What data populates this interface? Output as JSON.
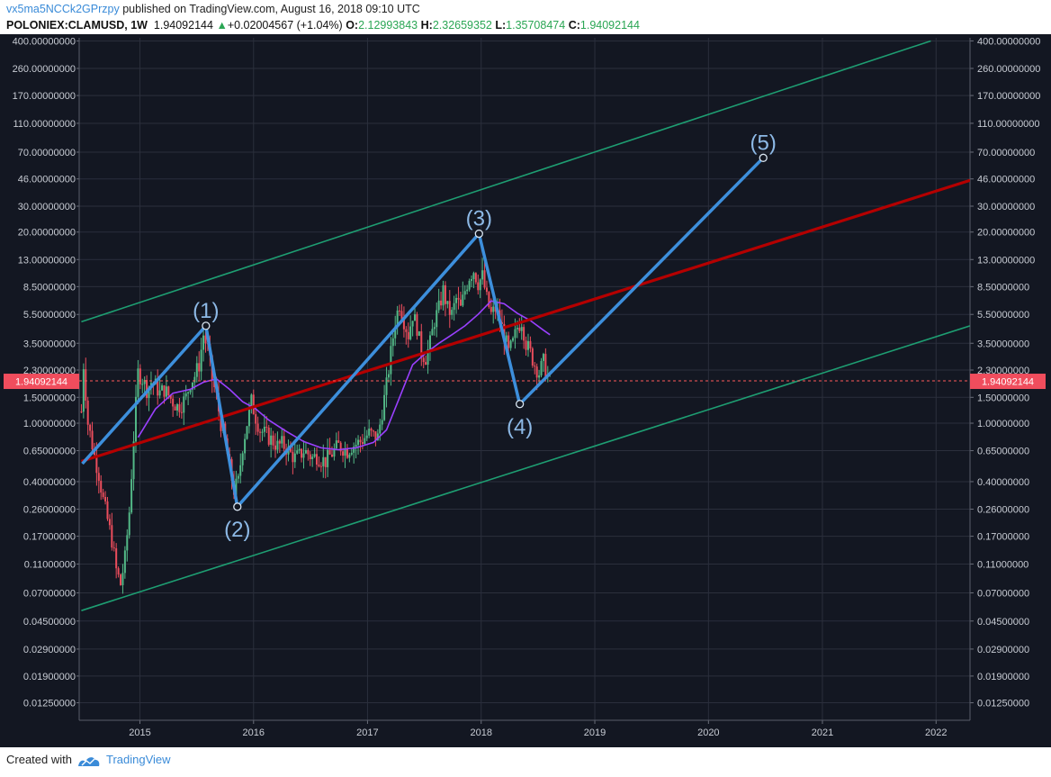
{
  "header": {
    "user": "vx5ma5NCCk2GPrzpy",
    "published_text": "published on TradingView.com, August 16, 2018 09:10 UTC",
    "symbol": "POLONIEX:CLAMUSD, 1W",
    "last": "1.94092144",
    "change": "+0.02004567 (+1.04%)",
    "o_label": "O:",
    "o": "2.12993843",
    "h_label": "H:",
    "h": "2.32659352",
    "l_label": "L:",
    "l": "1.35708474",
    "c_label": "C:",
    "c": "1.94092144"
  },
  "footer": {
    "created_with": "Created with",
    "brand": "TradingView"
  },
  "colors": {
    "background": "#131722",
    "grid": "#2b2f3c",
    "axis_text": "#c8ccd4",
    "up": "#53b987",
    "down": "#eb4d5c",
    "ma": "#9a40ff",
    "channel": "#1e9e72",
    "midline": "#b40000",
    "wave": "#3d8fdc",
    "price_line": "#ff5a5a",
    "wave_label": "#8db9e6"
  },
  "chart_data": {
    "type": "candlestick",
    "scale": "log",
    "ylim": [
      0.0095,
      420
    ],
    "xlim": [
      "2014-06-20",
      "2022-04-20"
    ],
    "y_ticks": [
      "400.00000000",
      "260.00000000",
      "170.00000000",
      "110.00000000",
      "70.00000000",
      "46.00000000",
      "30.00000000",
      "20.00000000",
      "13.00000000",
      "8.50000000",
      "5.50000000",
      "3.50000000",
      "2.30000000",
      "1.50000000",
      "1.00000000",
      "0.65000000",
      "0.40000000",
      "0.26000000",
      "0.17000000",
      "0.11000000",
      "0.07000000",
      "0.04500000",
      "0.02900000",
      "0.01900000",
      "0.01250000"
    ],
    "x_ticks": [
      "2015",
      "2016",
      "2017",
      "2018",
      "2019",
      "2020",
      "2021",
      "2022"
    ],
    "current_price": 1.94092144,
    "current_price_label": "1.94092144",
    "price_path": [
      [
        "2014-06-27",
        1.2
      ],
      [
        "2014-07-04",
        2.5
      ],
      [
        "2014-07-11",
        1.6
      ],
      [
        "2014-07-18",
        1.0
      ],
      [
        "2014-07-25",
        0.85
      ],
      [
        "2014-08-08",
        0.6
      ],
      [
        "2014-08-22",
        0.45
      ],
      [
        "2014-09-05",
        0.3
      ],
      [
        "2014-09-19",
        0.22
      ],
      [
        "2014-10-03",
        0.16
      ],
      [
        "2014-10-17",
        0.1
      ],
      [
        "2014-10-31",
        0.08
      ],
      [
        "2014-11-14",
        0.12
      ],
      [
        "2014-11-28",
        0.25
      ],
      [
        "2014-12-12",
        0.8
      ],
      [
        "2014-12-26",
        2.2
      ],
      [
        "2015-01-09",
        2.0
      ],
      [
        "2015-01-23",
        1.7
      ],
      [
        "2015-02-06",
        1.9
      ],
      [
        "2015-02-20",
        1.8
      ],
      [
        "2015-03-06",
        1.6
      ],
      [
        "2015-03-20",
        1.7
      ],
      [
        "2015-04-03",
        1.55
      ],
      [
        "2015-04-17",
        1.4
      ],
      [
        "2015-05-01",
        1.3
      ],
      [
        "2015-05-15",
        1.35
      ],
      [
        "2015-05-29",
        1.5
      ],
      [
        "2015-06-12",
        1.9
      ],
      [
        "2015-06-26",
        2.1
      ],
      [
        "2015-07-10",
        2.5
      ],
      [
        "2015-07-24",
        4.0
      ],
      [
        "2015-08-07",
        3.2
      ],
      [
        "2015-08-21",
        2.0
      ],
      [
        "2015-09-04",
        1.5
      ],
      [
        "2015-09-18",
        1.0
      ],
      [
        "2015-10-02",
        0.75
      ],
      [
        "2015-10-16",
        0.5
      ],
      [
        "2015-10-30",
        0.35
      ],
      [
        "2015-11-13",
        0.4
      ],
      [
        "2015-11-27",
        0.7
      ],
      [
        "2015-12-11",
        1.0
      ],
      [
        "2015-12-25",
        1.4
      ],
      [
        "2016-01-08",
        1.1
      ],
      [
        "2016-01-22",
        0.9
      ],
      [
        "2016-02-05",
        0.85
      ],
      [
        "2016-02-19",
        0.8
      ],
      [
        "2016-03-04",
        0.75
      ],
      [
        "2016-03-18",
        0.7
      ],
      [
        "2016-04-01",
        0.72
      ],
      [
        "2016-04-15",
        0.68
      ],
      [
        "2016-04-29",
        0.62
      ],
      [
        "2016-05-13",
        0.58
      ],
      [
        "2016-05-27",
        0.6
      ],
      [
        "2016-06-10",
        0.65
      ],
      [
        "2016-06-24",
        0.62
      ],
      [
        "2016-07-08",
        0.58
      ],
      [
        "2016-07-22",
        0.6
      ],
      [
        "2016-08-05",
        0.57
      ],
      [
        "2016-08-19",
        0.55
      ],
      [
        "2016-09-02",
        0.6
      ],
      [
        "2016-09-16",
        0.65
      ],
      [
        "2016-09-30",
        0.7
      ],
      [
        "2016-10-14",
        0.68
      ],
      [
        "2016-10-28",
        0.65
      ],
      [
        "2016-11-11",
        0.7
      ],
      [
        "2016-11-25",
        0.72
      ],
      [
        "2016-12-09",
        0.75
      ],
      [
        "2016-12-23",
        0.8
      ],
      [
        "2017-01-06",
        0.85
      ],
      [
        "2017-01-20",
        0.82
      ],
      [
        "2017-02-03",
        0.8
      ],
      [
        "2017-02-17",
        1.2
      ],
      [
        "2017-03-03",
        1.8
      ],
      [
        "2017-03-17",
        3.0
      ],
      [
        "2017-03-31",
        5.0
      ],
      [
        "2017-04-14",
        6.5
      ],
      [
        "2017-04-28",
        5.0
      ],
      [
        "2017-05-12",
        4.0
      ],
      [
        "2017-05-26",
        5.5
      ],
      [
        "2017-06-09",
        4.5
      ],
      [
        "2017-06-23",
        3.0
      ],
      [
        "2017-07-07",
        2.8
      ],
      [
        "2017-07-21",
        3.5
      ],
      [
        "2017-08-04",
        5.0
      ],
      [
        "2017-08-18",
        6.0
      ],
      [
        "2017-09-01",
        8.0
      ],
      [
        "2017-09-15",
        6.0
      ],
      [
        "2017-09-29",
        5.5
      ],
      [
        "2017-10-13",
        7.0
      ],
      [
        "2017-10-27",
        6.0
      ],
      [
        "2017-11-10",
        8.0
      ],
      [
        "2017-11-24",
        10.0
      ],
      [
        "2017-12-08",
        11.0
      ],
      [
        "2017-12-22",
        9.0
      ],
      [
        "2018-01-05",
        10.0
      ],
      [
        "2018-01-19",
        7.0
      ],
      [
        "2018-02-02",
        5.5
      ],
      [
        "2018-02-16",
        6.0
      ],
      [
        "2018-03-02",
        5.0
      ],
      [
        "2018-03-16",
        4.0
      ],
      [
        "2018-03-30",
        3.0
      ],
      [
        "2018-04-13",
        3.5
      ],
      [
        "2018-04-27",
        4.5
      ],
      [
        "2018-05-11",
        5.0
      ],
      [
        "2018-05-25",
        3.5
      ],
      [
        "2018-06-08",
        3.0
      ],
      [
        "2018-06-22",
        2.5
      ],
      [
        "2018-07-06",
        2.2
      ],
      [
        "2018-07-20",
        2.6
      ],
      [
        "2018-08-03",
        2.1
      ],
      [
        "2018-08-10",
        1.94
      ]
    ],
    "ma_line": [
      [
        "2014-12-26",
        0.8
      ],
      [
        "2015-02-20",
        1.25
      ],
      [
        "2015-04-17",
        1.6
      ],
      [
        "2015-06-12",
        1.7
      ],
      [
        "2015-07-24",
        1.9
      ],
      [
        "2015-09-04",
        2.0
      ],
      [
        "2015-10-16",
        1.7
      ],
      [
        "2015-11-27",
        1.4
      ],
      [
        "2016-01-08",
        1.25
      ],
      [
        "2016-02-19",
        1.05
      ],
      [
        "2016-04-15",
        0.88
      ],
      [
        "2016-06-10",
        0.75
      ],
      [
        "2016-08-05",
        0.68
      ],
      [
        "2016-09-30",
        0.66
      ],
      [
        "2016-11-25",
        0.68
      ],
      [
        "2017-01-20",
        0.74
      ],
      [
        "2017-03-03",
        0.9
      ],
      [
        "2017-04-14",
        1.5
      ],
      [
        "2017-05-26",
        2.5
      ],
      [
        "2017-07-07",
        3.0
      ],
      [
        "2017-08-18",
        3.5
      ],
      [
        "2017-09-29",
        4.0
      ],
      [
        "2017-11-10",
        4.6
      ],
      [
        "2017-12-22",
        5.5
      ],
      [
        "2018-02-02",
        6.8
      ],
      [
        "2018-03-16",
        6.5
      ],
      [
        "2018-04-27",
        5.6
      ],
      [
        "2018-06-08",
        5.0
      ],
      [
        "2018-07-20",
        4.3
      ],
      [
        "2018-08-10",
        4.0
      ]
    ],
    "channel_upper": {
      "start": [
        "2014-06-27",
        4.9
      ],
      "end": [
        "2021-12-15",
        400
      ]
    },
    "channel_lower": {
      "start": [
        "2014-06-27",
        0.053
      ],
      "end": [
        "2022-04-20",
        4.6
      ]
    },
    "midline": {
      "start": [
        "2014-06-27",
        0.55
      ],
      "end": [
        "2022-04-20",
        45
      ]
    },
    "elliott_wave": [
      {
        "label": "(1)",
        "date": "2015-08-01",
        "price": 4.6,
        "label_pos": "above"
      },
      {
        "label": "(2)",
        "date": "2015-11-10",
        "price": 0.27,
        "label_pos": "below"
      },
      {
        "label": "(3)",
        "date": "2017-12-25",
        "price": 19.5,
        "label_pos": "above"
      },
      {
        "label": "(4)",
        "date": "2018-05-05",
        "price": 1.35,
        "label_pos": "below"
      },
      {
        "label": "(5)",
        "date": "2020-06-25",
        "price": 64,
        "label_pos": "above"
      }
    ],
    "wave_start": {
      "date": "2014-06-30",
      "price": 0.53
    }
  }
}
